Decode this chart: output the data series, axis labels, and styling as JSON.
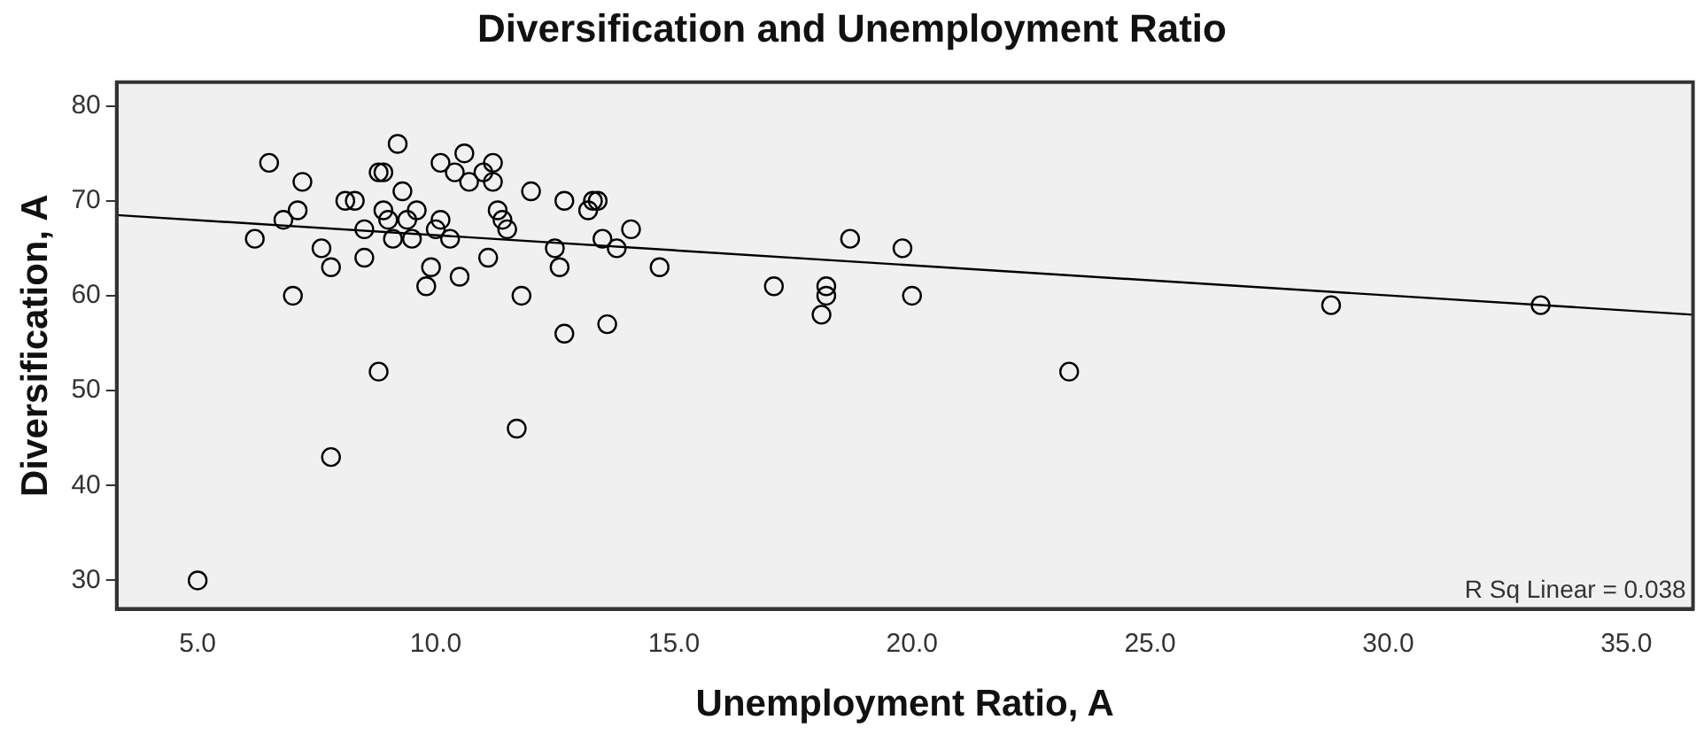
{
  "chart_data": {
    "type": "scatter",
    "title": "Diversification and Unemployment Ratio",
    "xlabel": "Unemployment Ratio, A",
    "ylabel": "Diversification, A",
    "xlim": [
      3.3,
      36.4
    ],
    "ylim": [
      27,
      82.5
    ],
    "xticks": [
      {
        "value": 5,
        "label": "5.0"
      },
      {
        "value": 10,
        "label": "10.0"
      },
      {
        "value": 15,
        "label": "15.0"
      },
      {
        "value": 20,
        "label": "20.0"
      },
      {
        "value": 25,
        "label": "25.0"
      },
      {
        "value": 30,
        "label": "30.0"
      },
      {
        "value": 35,
        "label": "35.0"
      }
    ],
    "yticks": [
      30,
      40,
      50,
      60,
      70,
      80
    ],
    "grid": false,
    "marker": "circle",
    "annotations": [
      "R Sq Linear = 0.038"
    ],
    "series": [
      {
        "type": "scatter",
        "color": "#000000",
        "x": [
          5.0,
          6.2,
          6.5,
          6.8,
          7.0,
          7.1,
          7.2,
          7.6,
          7.8,
          7.8,
          8.1,
          8.3,
          8.5,
          8.5,
          8.8,
          8.9,
          8.8,
          8.9,
          9.0,
          9.1,
          9.2,
          9.3,
          9.4,
          9.5,
          9.6,
          9.8,
          9.9,
          10.0,
          10.1,
          10.1,
          10.3,
          10.4,
          10.5,
          10.6,
          10.7,
          11.0,
          11.1,
          11.2,
          11.2,
          11.3,
          11.4,
          11.5,
          11.7,
          11.8,
          12.0,
          12.5,
          12.6,
          12.7,
          12.7,
          13.2,
          13.3,
          13.4,
          13.5,
          13.6,
          13.8,
          14.1,
          14.7,
          17.1,
          18.1,
          18.2,
          18.2,
          18.7,
          19.8,
          20.0,
          23.3,
          28.8,
          33.2
        ],
        "values": [
          30,
          66,
          74,
          68,
          60,
          69,
          72,
          65,
          63,
          43,
          70,
          70,
          67,
          64,
          73,
          73,
          52,
          69,
          68,
          66,
          76,
          71,
          68,
          66,
          69,
          61,
          63,
          67,
          74,
          68,
          66,
          73,
          62,
          75,
          72,
          73,
          64,
          74,
          72,
          69,
          68,
          67,
          46,
          60,
          71,
          65,
          63,
          70,
          56,
          69,
          70,
          70,
          66,
          57,
          65,
          67,
          63,
          61,
          58,
          61,
          60,
          66,
          65,
          60,
          52,
          59,
          59
        ]
      },
      {
        "type": "line",
        "marker": "none",
        "color": "#000000",
        "x": [
          3.3,
          36.4
        ],
        "values": [
          68.5,
          58.0
        ]
      }
    ]
  }
}
